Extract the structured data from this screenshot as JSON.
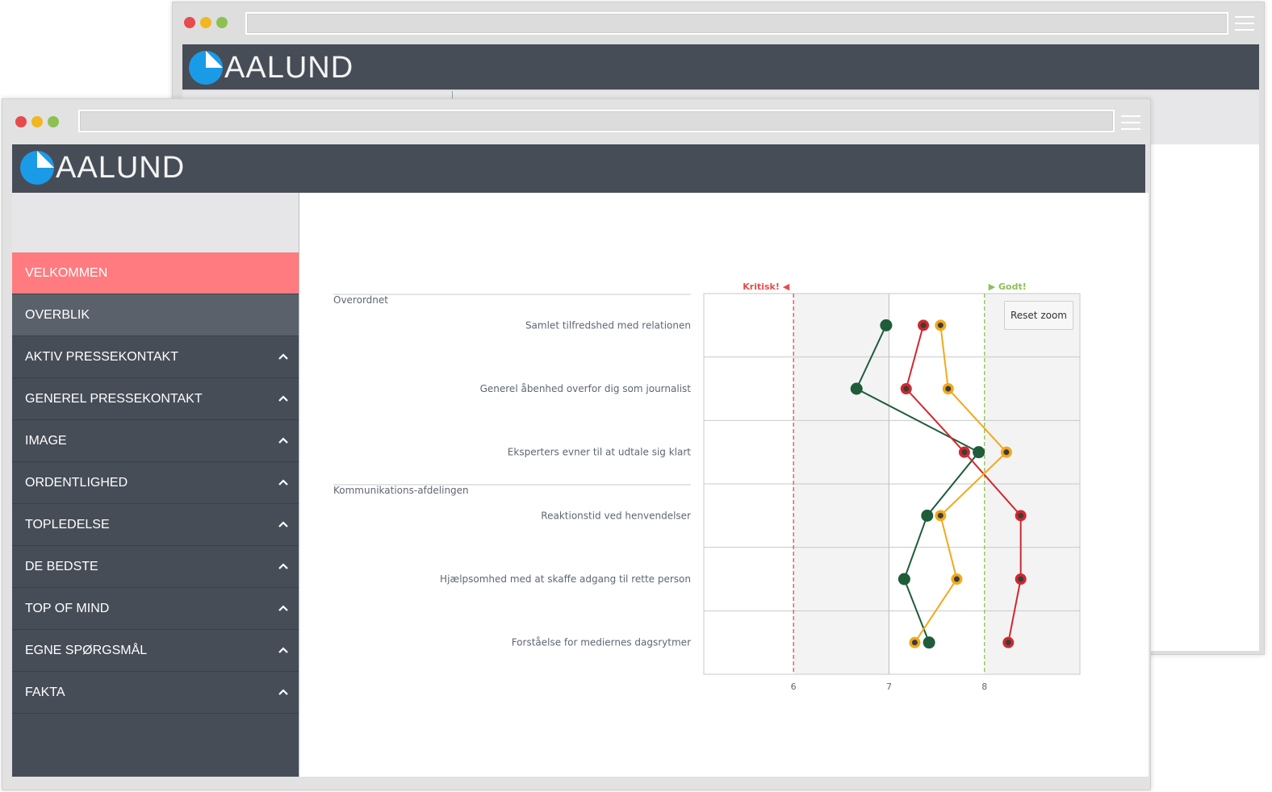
{
  "brand": {
    "name": "AALUND"
  },
  "colors": {
    "accent_active": "#ff7b7f",
    "header_bg": "#474d57",
    "critical": "#e84b4b",
    "good": "#8cc152"
  },
  "back_window": {
    "brand": "AALUND"
  },
  "sidebar": {
    "items": [
      {
        "label": "VELKOMMEN",
        "state": "active",
        "expandable": false
      },
      {
        "label": "OVERBLIK",
        "state": "selected",
        "expandable": false
      },
      {
        "label": "AKTIV PRESSEKONTAKT",
        "expandable": true
      },
      {
        "label": "GENEREL PRESSEKONTAKT",
        "expandable": true
      },
      {
        "label": "IMAGE",
        "expandable": true
      },
      {
        "label": "ORDENTLIGHED",
        "expandable": true
      },
      {
        "label": "TOPLEDELSE",
        "expandable": true
      },
      {
        "label": "DE BEDSTE",
        "expandable": true
      },
      {
        "label": "TOP OF MIND",
        "expandable": true
      },
      {
        "label": "EGNE SPØRGSMÅL",
        "expandable": true
      },
      {
        "label": "FAKTA",
        "expandable": true
      }
    ],
    "chevron_icon": "chevron-up-icon"
  },
  "chart_controls": {
    "reset_zoom_label": "Reset zoom"
  },
  "chart_data": {
    "type": "line",
    "orientation": "horizontal-categories",
    "groups": [
      {
        "label": "Overordnet",
        "categories": [
          "Samlet tilfredshed med relationen",
          "Generel åbenhed overfor dig som journalist",
          "Eksperters evner til at udtale sig klart"
        ]
      },
      {
        "label": "Kommunikations-afdelingen",
        "categories": [
          "Reaktionstid ved henvendelser",
          "Hjælpsomhed med at skaffe adgang til rette person",
          "Forståelse for mediernes dagsrytmer"
        ]
      }
    ],
    "categories": [
      "Samlet tilfredshed med relationen",
      "Generel åbenhed overfor dig som journalist",
      "Eksperters evner til at udtale sig klart",
      "Reaktionstid ved henvendelser",
      "Hjælpsomhed med at skaffe adgang til rette person",
      "Forståelse for mediernes dagsrytmer"
    ],
    "x_ticks": [
      "6",
      "7",
      "8"
    ],
    "xlim": [
      5.06,
      9.0
    ],
    "series": [
      {
        "color": "#1e5c3a",
        "values": [
          6.97,
          6.66,
          7.94,
          7.4,
          7.16,
          7.42
        ]
      },
      {
        "color": "#d0282d",
        "values": [
          7.36,
          7.18,
          7.79,
          8.38,
          8.38,
          8.25
        ]
      },
      {
        "color": "#f3a81b",
        "values": [
          7.54,
          7.62,
          8.23,
          7.54,
          7.71,
          7.27
        ]
      }
    ],
    "reference_lines": [
      {
        "label": "Kritisk! ◀",
        "value": 6,
        "color": "#e84b4b",
        "style": "dashed"
      },
      {
        "label": "▶ Godt!",
        "value": 8,
        "color": "#8cc152",
        "style": "dashed"
      }
    ],
    "shaded_bands": [
      [
        6,
        7
      ],
      [
        8,
        9
      ]
    ],
    "grid": true
  }
}
